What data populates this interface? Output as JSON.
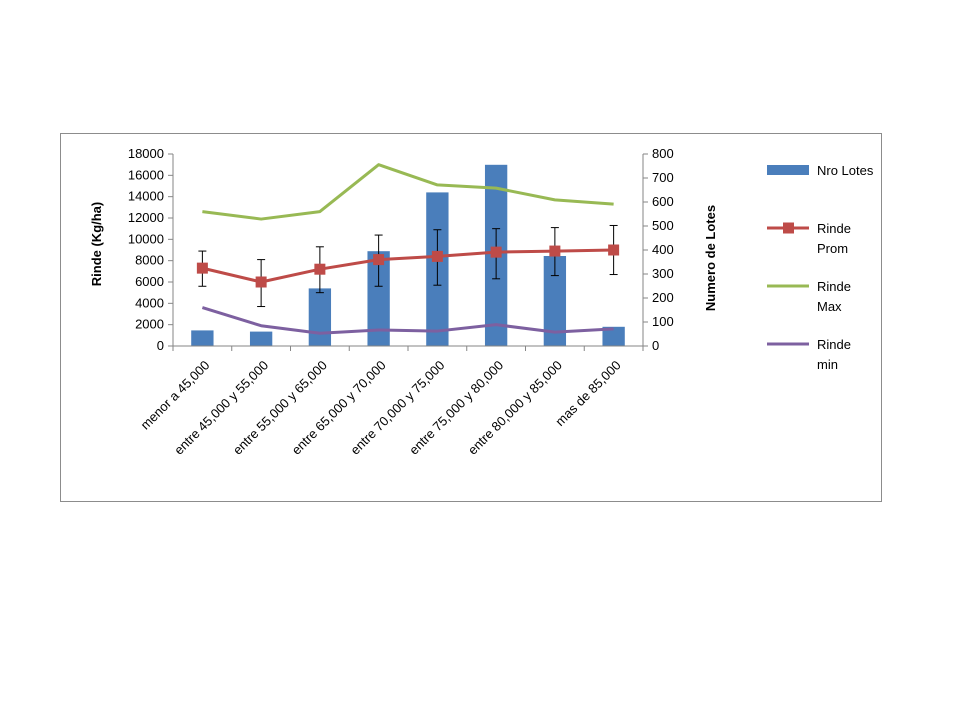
{
  "chart_data": {
    "type": "bar",
    "categories": [
      "menor a 45,000",
      "entre 45,000 y 55,000",
      "entre 55,000 y 65,000",
      "entre 65,000 y 70,000",
      "entre 70,000 y 75,000",
      "entre 75,000 y 80,000",
      "entre 80,000 y 85,000",
      "mas de 85,000"
    ],
    "ylabel": "Rinde (Kg/ha)",
    "y2label": "Numero de Lotes",
    "ylim": [
      0,
      18000
    ],
    "y2lim": [
      0,
      800
    ],
    "yticks": [
      "0",
      "2000",
      "4000",
      "6000",
      "8000",
      "10000",
      "12000",
      "14000",
      "16000",
      "18000"
    ],
    "y2ticks": [
      "0",
      "100",
      "200",
      "300",
      "400",
      "500",
      "600",
      "700",
      "800"
    ],
    "legend_position": "right",
    "grid": false,
    "series": [
      {
        "name": "Nro Lotes",
        "type": "bar",
        "axis": "secondary",
        "color": "#4a7ebb",
        "values": [
          65,
          60,
          240,
          395,
          640,
          755,
          375,
          80
        ]
      },
      {
        "name": "Rinde Prom",
        "type": "line",
        "marker": "square",
        "axis": "primary",
        "color": "#be4b48",
        "values": [
          7300,
          6000,
          7200,
          8100,
          8400,
          8800,
          8900,
          9000
        ],
        "error_low": [
          5600,
          3700,
          5000,
          5600,
          5700,
          6300,
          6600,
          6700
        ],
        "error_high": [
          8900,
          8100,
          9300,
          10400,
          10900,
          11000,
          11100,
          11300
        ]
      },
      {
        "name": "Rinde Max",
        "type": "line",
        "axis": "primary",
        "color": "#98b954",
        "values": [
          12600,
          11900,
          12600,
          17000,
          15100,
          14800,
          13700,
          13300
        ]
      },
      {
        "name": "Rinde min",
        "type": "line",
        "axis": "primary",
        "color": "#7d60a0",
        "values": [
          3600,
          1900,
          1200,
          1500,
          1400,
          2000,
          1300,
          1600
        ]
      }
    ]
  }
}
